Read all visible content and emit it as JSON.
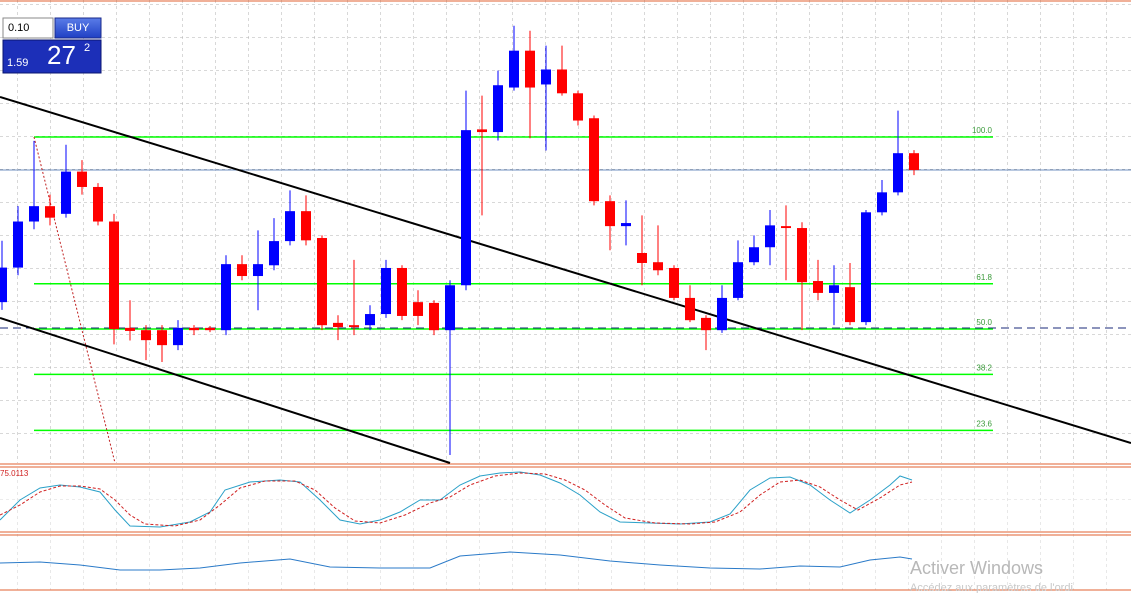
{
  "order_panel": {
    "lot": "0.10",
    "button": "BUY",
    "price_prefix": "1.59",
    "price_big": "27",
    "price_sup": "2"
  },
  "chart_data": {
    "type": "candlestick",
    "up_color": "#0000ff",
    "down_color": "#ff0000",
    "ylim": [
      15.1,
      135.7
    ],
    "grid": true,
    "fib_levels": [
      {
        "value": 100,
        "label": "100.0"
      },
      61.8,
      {
        "value": 50,
        "label": "50.0"
      },
      38.2,
      23.6
    ],
    "fib_color": "#00ff00",
    "candles": [
      {
        "open": 57,
        "high": 73,
        "low": 55,
        "close": 66
      },
      {
        "open": 66,
        "high": 82,
        "low": 64,
        "close": 78
      },
      {
        "open": 78,
        "high": 99,
        "low": 76,
        "close": 82
      },
      {
        "open": 82,
        "high": 85,
        "low": 77,
        "close": 79
      },
      {
        "open": 80,
        "high": 98,
        "low": 79,
        "close": 91
      },
      {
        "open": 91,
        "high": 94,
        "low": 85,
        "close": 87
      },
      {
        "open": 87,
        "high": 88,
        "low": 77,
        "close": 78
      },
      {
        "open": 78,
        "high": 80,
        "low": 46,
        "close": 50
      },
      {
        "open": 50.3,
        "high": 57.5,
        "low": 47,
        "close": 49.5
      },
      {
        "open": 49.7,
        "high": 51,
        "low": 41.9,
        "close": 47.1
      },
      {
        "open": 49.7,
        "high": 51,
        "low": 41.4,
        "close": 45.8
      },
      {
        "open": 45.8,
        "high": 52.3,
        "low": 44.5,
        "close": 50.3
      },
      {
        "open": 50.3,
        "high": 51,
        "low": 48.4,
        "close": 49.7
      },
      {
        "open": 50.3,
        "high": 50.8,
        "low": 49.2,
        "close": 49.7
      },
      {
        "open": 49.7,
        "high": 69.2,
        "low": 48.4,
        "close": 66.9
      },
      {
        "open": 66.9,
        "high": 69.2,
        "low": 62.7,
        "close": 63.8
      },
      {
        "open": 63.8,
        "high": 75.7,
        "low": 54.9,
        "close": 66.9
      },
      {
        "open": 66.6,
        "high": 78.9,
        "low": 65.3,
        "close": 72.9
      },
      {
        "open": 72.9,
        "high": 86.1,
        "low": 71.8,
        "close": 80.7
      },
      {
        "open": 80.7,
        "high": 84.8,
        "low": 71.8,
        "close": 73.1
      },
      {
        "open": 73.7,
        "high": 74.4,
        "low": 49.7,
        "close": 51
      },
      {
        "open": 51.6,
        "high": 53.6,
        "low": 47.1,
        "close": 50.5
      },
      {
        "open": 51,
        "high": 68,
        "low": 48.4,
        "close": 50.5
      },
      {
        "open": 51,
        "high": 56.2,
        "low": 49.7,
        "close": 53.9
      },
      {
        "open": 53.9,
        "high": 68,
        "low": 52.9,
        "close": 65.9
      },
      {
        "open": 65.9,
        "high": 66.6,
        "low": 52.3,
        "close": 53.4
      },
      {
        "open": 57,
        "high": 60.1,
        "low": 51,
        "close": 53.4
      },
      {
        "open": 56.8,
        "high": 57.5,
        "low": 48.4,
        "close": 49.7
      },
      {
        "open": 49.7,
        "high": 62.7,
        "low": 17.2,
        "close": 61.4
      },
      {
        "open": 61.4,
        "high": 112.1,
        "low": 60.1,
        "close": 101.8
      },
      {
        "open": 102,
        "high": 110.8,
        "low": 79.6,
        "close": 101.3
      },
      {
        "open": 101.3,
        "high": 117.3,
        "low": 99.1,
        "close": 113.5
      },
      {
        "open": 112.9,
        "high": 129,
        "low": 112.1,
        "close": 122.5
      },
      {
        "open": 122.5,
        "high": 127.7,
        "low": 99.7,
        "close": 112.9
      },
      {
        "open": 113.7,
        "high": 123.8,
        "low": 96.5,
        "close": 117.6
      },
      {
        "open": 117.6,
        "high": 123.8,
        "low": 110.8,
        "close": 111.4
      },
      {
        "open": 111.4,
        "high": 112.1,
        "low": 103,
        "close": 104.3
      },
      {
        "open": 104.9,
        "high": 105.6,
        "low": 82.2,
        "close": 83.3
      },
      {
        "open": 83.3,
        "high": 84.8,
        "low": 70.5,
        "close": 76.8
      },
      {
        "open": 76.8,
        "high": 83.5,
        "low": 71.8,
        "close": 77.6
      },
      {
        "open": 69.8,
        "high": 79.6,
        "low": 61.4,
        "close": 67.2
      },
      {
        "open": 67.4,
        "high": 77,
        "low": 64,
        "close": 65.3
      },
      {
        "open": 65.9,
        "high": 66.6,
        "low": 57.5,
        "close": 58.1
      },
      {
        "open": 58.1,
        "high": 61.4,
        "low": 51.8,
        "close": 52.3
      },
      {
        "open": 52.9,
        "high": 53.6,
        "low": 44.5,
        "close": 49.7
      },
      {
        "open": 49.7,
        "high": 61.4,
        "low": 49,
        "close": 58.1
      },
      {
        "open": 58.1,
        "high": 73.1,
        "low": 57.5,
        "close": 67.4
      },
      {
        "open": 67.4,
        "high": 74.4,
        "low": 66.6,
        "close": 71.3
      },
      {
        "open": 71.3,
        "high": 81,
        "low": 66.6,
        "close": 77
      },
      {
        "open": 76.8,
        "high": 82.2,
        "low": 62.7,
        "close": 76.3
      },
      {
        "open": 76.3,
        "high": 77.8,
        "low": 49.7,
        "close": 62.2
      },
      {
        "open": 62.5,
        "high": 68,
        "low": 57.5,
        "close": 59.4
      },
      {
        "open": 59.4,
        "high": 66.6,
        "low": 51,
        "close": 61.4
      },
      {
        "open": 60.9,
        "high": 67.2,
        "low": 51,
        "close": 51.8
      },
      {
        "open": 51.8,
        "high": 81,
        "low": 51,
        "close": 80.4
      },
      {
        "open": 80.4,
        "high": 88.8,
        "low": 79.6,
        "close": 85.6
      },
      {
        "open": 85.6,
        "high": 106.9,
        "low": 84.8,
        "close": 95.8
      },
      {
        "open": 95.8,
        "high": 96.6,
        "low": 90.1,
        "close": 91.4
      }
    ]
  },
  "indicator": {
    "label": "75.0113"
  },
  "watermark": {
    "title": "Activer Windows",
    "subtitle": "Accédez aux paramètres de l'ordi"
  }
}
